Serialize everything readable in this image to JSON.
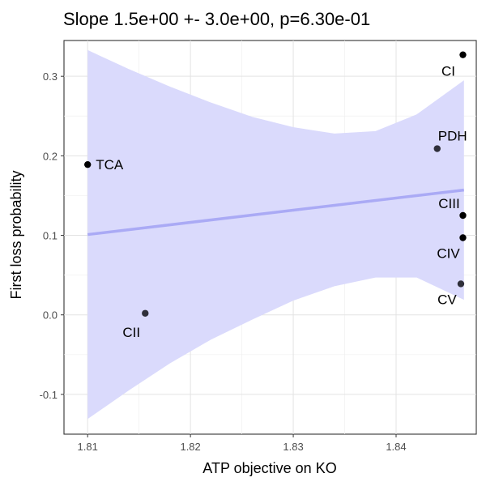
{
  "chart_data": {
    "type": "scatter",
    "title": "Slope 1.5e+00 +- 3.0e+00, p=6.30e-01",
    "xlabel": "ATP objective on KO",
    "ylabel": "First loss probability",
    "xlim": [
      1.8077,
      1.8478
    ],
    "ylim": [
      -0.15,
      0.345
    ],
    "x_ticks": [
      1.81,
      1.82,
      1.83,
      1.84
    ],
    "x_tick_labels": [
      "1.81",
      "1.82",
      "1.83",
      "1.84"
    ],
    "y_ticks": [
      -0.1,
      0.0,
      0.1,
      0.2,
      0.3
    ],
    "y_tick_labels": [
      "-0.1",
      "0.0",
      "0.1",
      "0.2",
      "0.3"
    ],
    "grid": true,
    "points": [
      {
        "label": "TCA",
        "x": 1.81,
        "y": 0.189,
        "color": "#000000"
      },
      {
        "label": "CII",
        "x": 1.8156,
        "y": 0.002,
        "color": "#2f2f3a"
      },
      {
        "label": "PDH",
        "x": 1.844,
        "y": 0.209,
        "color": "#2f2f3a"
      },
      {
        "label": "CI",
        "x": 1.8465,
        "y": 0.327,
        "color": "#000000"
      },
      {
        "label": "CIII",
        "x": 1.8465,
        "y": 0.125,
        "color": "#000000"
      },
      {
        "label": "CIV",
        "x": 1.8465,
        "y": 0.097,
        "color": "#000000"
      },
      {
        "label": "CV",
        "x": 1.8463,
        "y": 0.039,
        "color": "#2f2f3a"
      }
    ],
    "fit_line": {
      "x": [
        1.81,
        1.8466
      ],
      "y": [
        0.101,
        0.157
      ],
      "color": "#aaaaf5"
    },
    "confidence_band": {
      "x": [
        1.81,
        1.814,
        1.818,
        1.822,
        1.826,
        1.83,
        1.834,
        1.838,
        1.842,
        1.8466
      ],
      "upper": [
        0.333,
        0.309,
        0.287,
        0.267,
        0.249,
        0.236,
        0.228,
        0.231,
        0.252,
        0.295
      ],
      "lower": [
        -0.131,
        -0.095,
        -0.061,
        -0.031,
        -0.006,
        0.018,
        0.036,
        0.047,
        0.047,
        0.019
      ],
      "color": "#dadafc"
    }
  }
}
